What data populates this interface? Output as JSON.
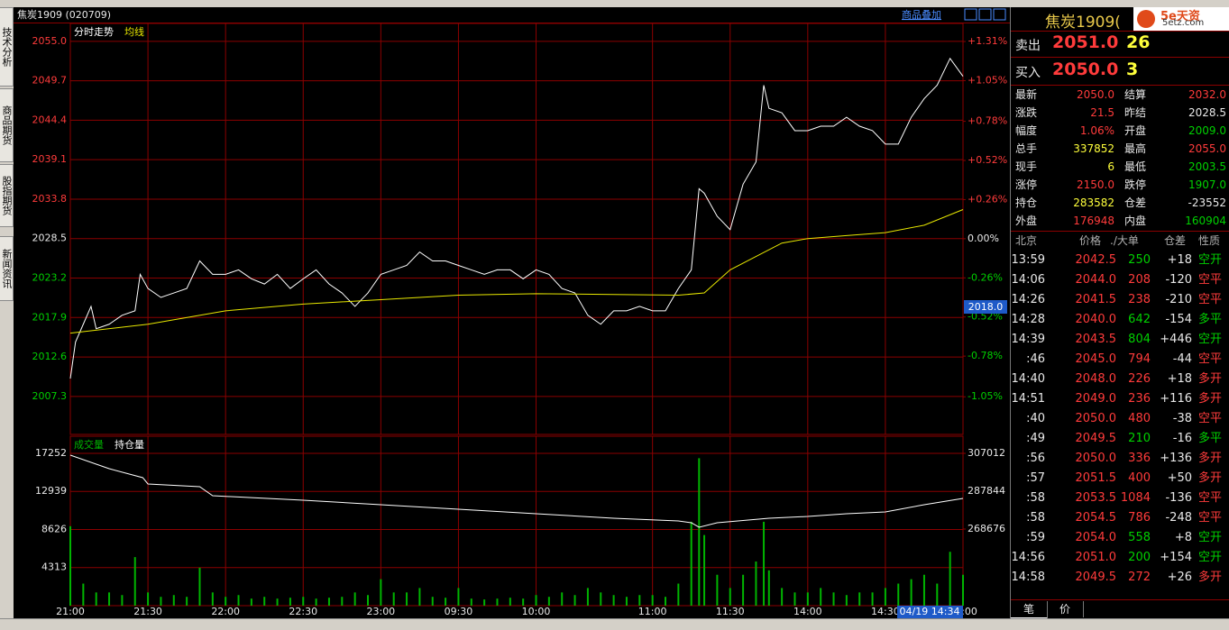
{
  "header": {
    "title": "焦炭1909 (020709)",
    "overlay_button": "商品叠加"
  },
  "sidebar": [
    "技术分析",
    "商品期货",
    "股指期货",
    "新闻资讯"
  ],
  "cursor": {
    "price": "2018.0",
    "time": "04/19 14:34"
  },
  "chart_data": [
    {
      "type": "line",
      "xlim": [
        0,
        345
      ],
      "ylim": [
        2002.2,
        2057.4
      ],
      "yticks": [
        {
          "value": 2055,
          "label": "2055.0"
        },
        {
          "value": 2049.7,
          "label": "2049.7"
        },
        {
          "value": 2044.4,
          "label": "2044.4"
        },
        {
          "value": 2039.1,
          "label": "2039.1"
        },
        {
          "value": 2033.8,
          "label": "2033.8"
        },
        {
          "value": 2028.5,
          "label": "2028.5"
        },
        {
          "value": 2023.2,
          "label": "2023.2"
        },
        {
          "value": 2017.9,
          "label": "2017.9"
        },
        {
          "value": 2012.6,
          "label": "2012.6"
        },
        {
          "value": 2007.3,
          "label": "2007.3"
        }
      ],
      "y2lim": [
        -1.3,
        1.43
      ],
      "y2ticks": [
        {
          "value": 1.31,
          "label": "+1.31%"
        },
        {
          "value": 1.05,
          "label": "+1.05%"
        },
        {
          "value": 0.78,
          "label": "+0.78%"
        },
        {
          "value": 0.52,
          "label": "+0.52%"
        },
        {
          "value": 0.26,
          "label": "+0.26%"
        },
        {
          "value": 0,
          "label": "0.00%"
        },
        {
          "value": -0.26,
          "label": "-0.26%"
        },
        {
          "value": -0.52,
          "label": "-0.52%"
        },
        {
          "value": -0.78,
          "label": "-0.78%"
        },
        {
          "value": -1.05,
          "label": "-1.05%"
        }
      ],
      "series": [
        {
          "name": "分时走势",
          "color": "#ffffff",
          "x": [
            0,
            2,
            5,
            8,
            10,
            15,
            20,
            25,
            27,
            30,
            35,
            40,
            45,
            50,
            55,
            60,
            65,
            70,
            75,
            80,
            85,
            90,
            95,
            100,
            105,
            110,
            115,
            120,
            125,
            130,
            135,
            140,
            145,
            150,
            155,
            160,
            165,
            170,
            175,
            180,
            185,
            190,
            195,
            200,
            205,
            210,
            215,
            220,
            225,
            230,
            235,
            240,
            243,
            245,
            250,
            255,
            260,
            265,
            268,
            270,
            275,
            280,
            285,
            290,
            295,
            300,
            305,
            310,
            315,
            320,
            325,
            330,
            335,
            340,
            345
          ],
          "values": [
            2009.7,
            2014.6,
            2017.0,
            2019.4,
            2016.4,
            2017.0,
            2018.2,
            2018.8,
            2023.7,
            2021.8,
            2020.6,
            2021.2,
            2021.8,
            2025.5,
            2023.7,
            2023.7,
            2024.3,
            2023.1,
            2022.4,
            2023.7,
            2021.8,
            2023.1,
            2024.3,
            2022.4,
            2021.2,
            2019.4,
            2021.2,
            2023.7,
            2024.3,
            2024.9,
            2026.7,
            2025.5,
            2025.5,
            2024.9,
            2024.3,
            2023.7,
            2024.3,
            2024.3,
            2023.1,
            2024.3,
            2023.7,
            2021.8,
            2021.2,
            2018.2,
            2017.0,
            2018.8,
            2018.8,
            2019.4,
            2018.8,
            2018.8,
            2021.8,
            2024.3,
            2035.2,
            2034.6,
            2031.5,
            2029.7,
            2035.8,
            2038.8,
            2049.1,
            2046.0,
            2045.4,
            2043.0,
            2043.0,
            2043.6,
            2043.6,
            2044.8,
            2043.6,
            2043.0,
            2041.2,
            2041.2,
            2044.8,
            2047.3,
            2049.1,
            2052.7,
            2050.3
          ]
        },
        {
          "name": "均线",
          "color": "#e8e800",
          "x": [
            0,
            30,
            60,
            90,
            120,
            150,
            180,
            210,
            235,
            245,
            255,
            265,
            275,
            285,
            300,
            315,
            330,
            345
          ],
          "values": [
            2015.8,
            2017.0,
            2018.8,
            2019.7,
            2020.3,
            2020.9,
            2021.1,
            2021.0,
            2020.9,
            2021.2,
            2024.3,
            2026.1,
            2027.9,
            2028.5,
            2028.9,
            2029.3,
            2030.3,
            2032.4
          ]
        }
      ]
    },
    {
      "type": "bar",
      "xlim": [
        0,
        345
      ],
      "xticks": [
        {
          "value": 0,
          "label": "21:00"
        },
        {
          "value": 30,
          "label": "21:30"
        },
        {
          "value": 60,
          "label": "22:00"
        },
        {
          "value": 90,
          "label": "22:30"
        },
        {
          "value": 120,
          "label": "23:00"
        },
        {
          "value": 150,
          "label": "09:30"
        },
        {
          "value": 180,
          "label": "10:00"
        },
        {
          "value": 225,
          "label": "11:00"
        },
        {
          "value": 255,
          "label": "11:30"
        },
        {
          "value": 285,
          "label": "14:00"
        },
        {
          "value": 315,
          "label": "14:30"
        },
        {
          "value": 345,
          "label": "15:00"
        }
      ],
      "ylim": [
        0,
        19190
      ],
      "yticks": [
        17252,
        12939,
        8626,
        4313
      ],
      "y2lim": [
        229884,
        315680
      ],
      "y2ticks": [
        307012,
        287844,
        268676
      ],
      "series": [
        {
          "name": "成交量",
          "color": "#00b400",
          "x": [
            0,
            5,
            10,
            15,
            20,
            25,
            30,
            35,
            40,
            45,
            50,
            55,
            60,
            65,
            70,
            75,
            80,
            85,
            90,
            95,
            100,
            105,
            110,
            115,
            120,
            125,
            130,
            135,
            140,
            145,
            150,
            155,
            160,
            165,
            170,
            175,
            180,
            185,
            190,
            195,
            200,
            205,
            210,
            215,
            220,
            225,
            230,
            235,
            240,
            243,
            245,
            250,
            255,
            260,
            265,
            268,
            270,
            275,
            280,
            285,
            290,
            295,
            300,
            305,
            310,
            315,
            320,
            325,
            330,
            335,
            340,
            345
          ],
          "values": [
            9000,
            2500,
            1500,
            1500,
            1200,
            5500,
            1500,
            1000,
            1200,
            1000,
            4300,
            1500,
            1000,
            1200,
            800,
            1000,
            800,
            900,
            1000,
            800,
            900,
            1000,
            1500,
            1200,
            3000,
            1500,
            1500,
            2000,
            1000,
            900,
            2000,
            800,
            700,
            800,
            900,
            800,
            1200,
            1000,
            1500,
            1200,
            2000,
            1500,
            1200,
            1000,
            1200,
            1200,
            1000,
            2500,
            9500,
            16700,
            8000,
            3500,
            2000,
            3500,
            5000,
            9500,
            4000,
            2000,
            1500,
            1500,
            2000,
            1500,
            1200,
            1500,
            1500,
            2000,
            2500,
            3000,
            3500,
            2500,
            6100,
            3500
          ]
        },
        {
          "name": "持仓量",
          "color": "#ffffff",
          "type": "line",
          "axis": "y2",
          "x": [
            0,
            15,
            28,
            30,
            50,
            55,
            90,
            120,
            150,
            180,
            210,
            235,
            240,
            243,
            250,
            270,
            285,
            300,
            315,
            330,
            345
          ],
          "values": [
            306100,
            299250,
            294690,
            291500,
            290120,
            285560,
            283280,
            281000,
            278720,
            276430,
            274150,
            272780,
            271870,
            269590,
            271870,
            274150,
            275060,
            276430,
            277350,
            281000,
            284190
          ]
        }
      ]
    }
  ],
  "quote": {
    "title": "焦炭1909(",
    "brand": "5e天资",
    "site": "5etz.com",
    "ask": {
      "label": "卖出",
      "price": "2051.0",
      "volume": "26"
    },
    "bid": {
      "label": "买入",
      "price": "2050.0",
      "volume": "3"
    },
    "fields": [
      [
        "最新",
        "2050.0",
        "结算",
        "2032.0"
      ],
      [
        "涨跌",
        "21.5",
        "昨结",
        "2028.5"
      ],
      [
        "幅度",
        "1.06%",
        "开盘",
        "2009.0"
      ],
      [
        "总手",
        "337852",
        "最高",
        "2055.0"
      ],
      [
        "现手",
        "6",
        "最低",
        "2003.5"
      ],
      [
        "涨停",
        "2150.0",
        "跌停",
        "1907.0"
      ],
      [
        "持仓",
        "283582",
        "仓差",
        "-23552"
      ],
      [
        "外盘",
        "176948",
        "内盘",
        "160904"
      ]
    ]
  },
  "ticks": {
    "columns": [
      "北京",
      "价格",
      "./大单",
      "仓差",
      "性质"
    ],
    "rows": [
      {
        "time": "13:59",
        "price": "2042.5",
        "volume": "250",
        "change": "+18",
        "nature": "空开",
        "color": "#00d000"
      },
      {
        "time": "14:06",
        "price": "2044.0",
        "volume": "208",
        "change": "-120",
        "nature": "空平",
        "color": "#ff3b3b"
      },
      {
        "time": "14:26",
        "price": "2041.5",
        "volume": "238",
        "change": "-210",
        "nature": "空平",
        "color": "#ff3b3b"
      },
      {
        "time": "14:28",
        "price": "2040.0",
        "volume": "642",
        "change": "-154",
        "nature": "多平",
        "color": "#00d000"
      },
      {
        "time": "14:39",
        "price": "2043.5",
        "volume": "804",
        "change": "+446",
        "nature": "空开",
        "color": "#00d000"
      },
      {
        "time": ":46",
        "price": "2045.0",
        "volume": "794",
        "change": "-44",
        "nature": "空平",
        "color": "#ff3b3b"
      },
      {
        "time": "14:40",
        "price": "2048.0",
        "volume": "226",
        "change": "+18",
        "nature": "多开",
        "color": "#ff3b3b"
      },
      {
        "time": "14:51",
        "price": "2049.0",
        "volume": "236",
        "change": "+116",
        "nature": "多开",
        "color": "#ff3b3b"
      },
      {
        "time": ":40",
        "price": "2050.0",
        "volume": "480",
        "change": "-38",
        "nature": "空平",
        "color": "#ff3b3b"
      },
      {
        "time": ":49",
        "price": "2049.5",
        "volume": "210",
        "change": "-16",
        "nature": "多平",
        "color": "#00d000"
      },
      {
        "time": ":56",
        "price": "2050.0",
        "volume": "336",
        "change": "+136",
        "nature": "多开",
        "color": "#ff3b3b"
      },
      {
        "time": ":57",
        "price": "2051.5",
        "volume": "400",
        "change": "+50",
        "nature": "多开",
        "color": "#ff3b3b"
      },
      {
        "time": ":58",
        "price": "2053.5",
        "volume": "1084",
        "change": "-136",
        "nature": "空平",
        "color": "#ff3b3b"
      },
      {
        "time": ":58",
        "price": "2054.5",
        "volume": "786",
        "change": "-248",
        "nature": "空平",
        "color": "#ff3b3b"
      },
      {
        "time": ":59",
        "price": "2054.0",
        "volume": "558",
        "change": "+8",
        "nature": "空开",
        "color": "#00d000"
      },
      {
        "time": "14:56",
        "price": "2051.0",
        "volume": "200",
        "change": "+154",
        "nature": "空开",
        "color": "#00d000"
      },
      {
        "time": "14:58",
        "price": "2049.5",
        "volume": "272",
        "change": "+26",
        "nature": "多开",
        "color": "#ff3b3b"
      }
    ]
  },
  "tabs": [
    "笔",
    "价"
  ]
}
